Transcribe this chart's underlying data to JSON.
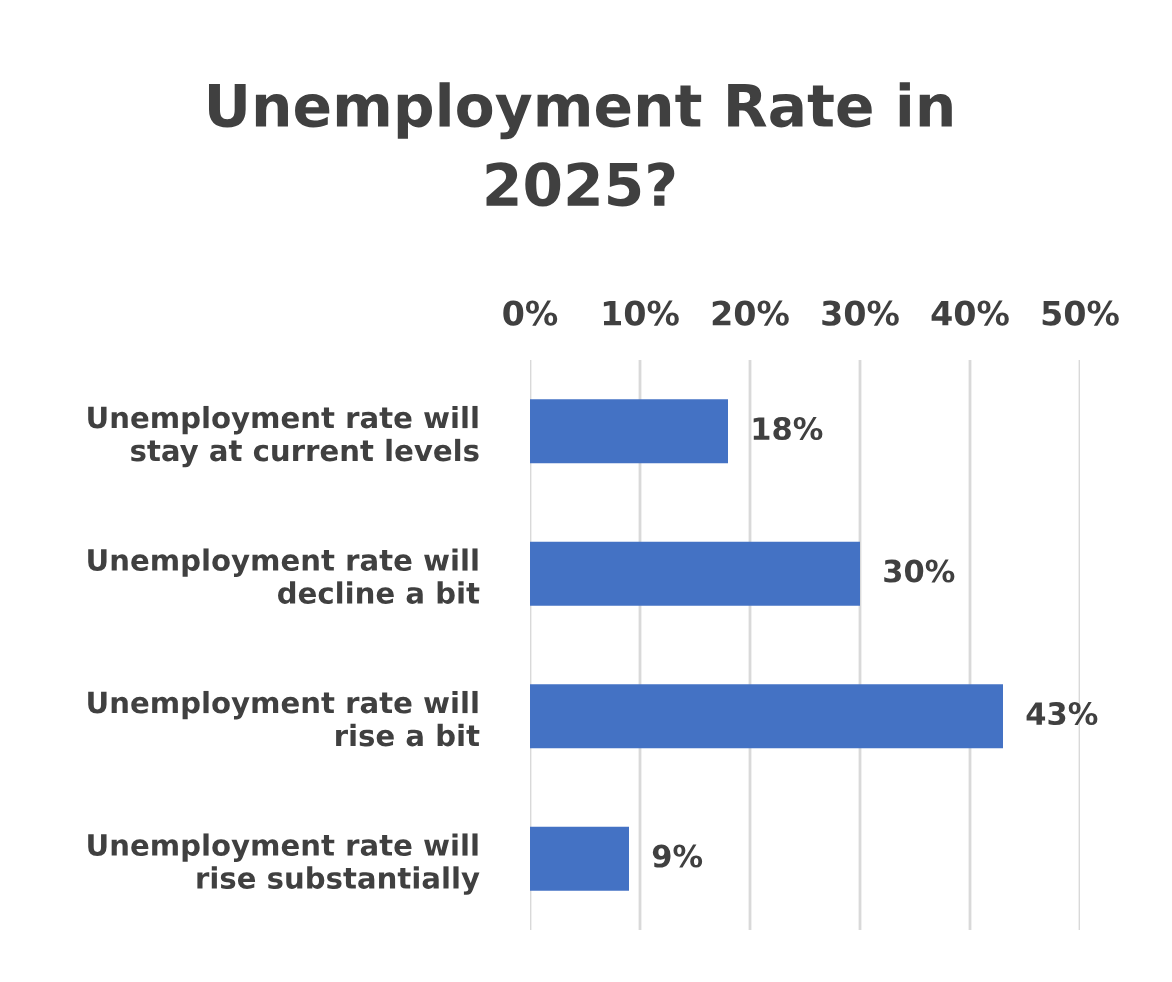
{
  "chart_data": {
    "type": "bar",
    "orientation": "horizontal",
    "title": "Unemployment Rate in\n2025?",
    "categories": [
      "Unemployment rate will\nstay at current levels",
      "Unemployment rate will\ndecline a bit",
      "Unemployment rate will\nrise a bit",
      "Unemployment rate will\nrise substantially"
    ],
    "values": [
      18,
      30,
      43,
      9
    ],
    "color": "#4472c4",
    "value_labels": [
      "18%",
      "30%",
      "43%",
      "9%"
    ],
    "xlim": [
      0,
      50
    ],
    "xticks": [
      {
        "value": 0,
        "label": "0%"
      },
      {
        "value": 10,
        "label": "10%"
      },
      {
        "value": 20,
        "label": "20%"
      },
      {
        "value": 30,
        "label": "30%"
      },
      {
        "value": 40,
        "label": "40%"
      },
      {
        "value": 50,
        "label": "50%"
      }
    ],
    "grid": "x",
    "legend": false
  }
}
